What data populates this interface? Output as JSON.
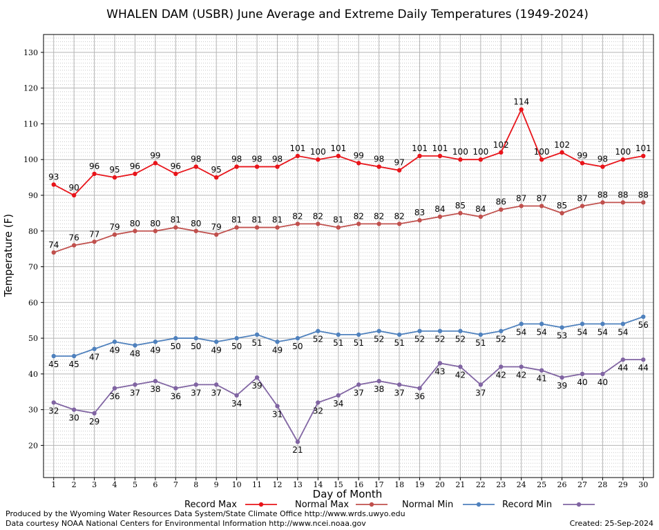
{
  "chart_data": {
    "type": "line",
    "title": "WHALEN DAM (USBR) June Average and Extreme Daily Temperatures (1949-2024)",
    "xlabel": "Day of Month",
    "ylabel": "Temperature (F)",
    "x": [
      1,
      2,
      3,
      4,
      5,
      6,
      7,
      8,
      9,
      10,
      11,
      12,
      13,
      14,
      15,
      16,
      17,
      18,
      19,
      20,
      21,
      22,
      23,
      24,
      25,
      26,
      27,
      28,
      29,
      30
    ],
    "xlim": [
      0.5,
      30.5
    ],
    "ylim": [
      11,
      135
    ],
    "yticks": [
      20,
      30,
      40,
      50,
      60,
      70,
      80,
      90,
      100,
      110,
      120,
      130
    ],
    "grid": true,
    "legend_position": "bottom",
    "series": [
      {
        "name": "Record Max",
        "color": "#e8141a",
        "values": [
          93,
          90,
          96,
          95,
          96,
          99,
          96,
          98,
          95,
          98,
          98,
          98,
          101,
          100,
          101,
          99,
          98,
          97,
          101,
          101,
          100,
          100,
          102,
          114,
          100,
          102,
          99,
          98,
          100,
          101
        ]
      },
      {
        "name": "Normal Max",
        "color": "#c0504d",
        "values": [
          74,
          76,
          77,
          79,
          80,
          80,
          81,
          80,
          79,
          81,
          81,
          81,
          82,
          82,
          81,
          82,
          82,
          82,
          83,
          84,
          85,
          84,
          86,
          87,
          87,
          85,
          87,
          88,
          88,
          88
        ]
      },
      {
        "name": "Normal Min",
        "color": "#4f81bd",
        "values": [
          45,
          45,
          47,
          49,
          48,
          49,
          50,
          50,
          49,
          50,
          51,
          49,
          50,
          52,
          51,
          51,
          52,
          51,
          52,
          52,
          52,
          51,
          52,
          54,
          54,
          53,
          54,
          54,
          54,
          56
        ]
      },
      {
        "name": "Record Min",
        "color": "#8064a2",
        "values": [
          32,
          30,
          29,
          36,
          37,
          38,
          36,
          37,
          37,
          34,
          39,
          31,
          21,
          32,
          34,
          37,
          38,
          37,
          36,
          43,
          42,
          37,
          42,
          42,
          41,
          39,
          40,
          40,
          44,
          44
        ]
      }
    ]
  },
  "footer": {
    "line1": "Produced by the Wyoming Water Resources Data System/State Climate Office http://www.wrds.uwyo.edu",
    "line2": "Data courtesy NOAA National Centers for Environmental Information http://www.ncei.noaa.gov",
    "created": "Created:  25-Sep-2024"
  }
}
